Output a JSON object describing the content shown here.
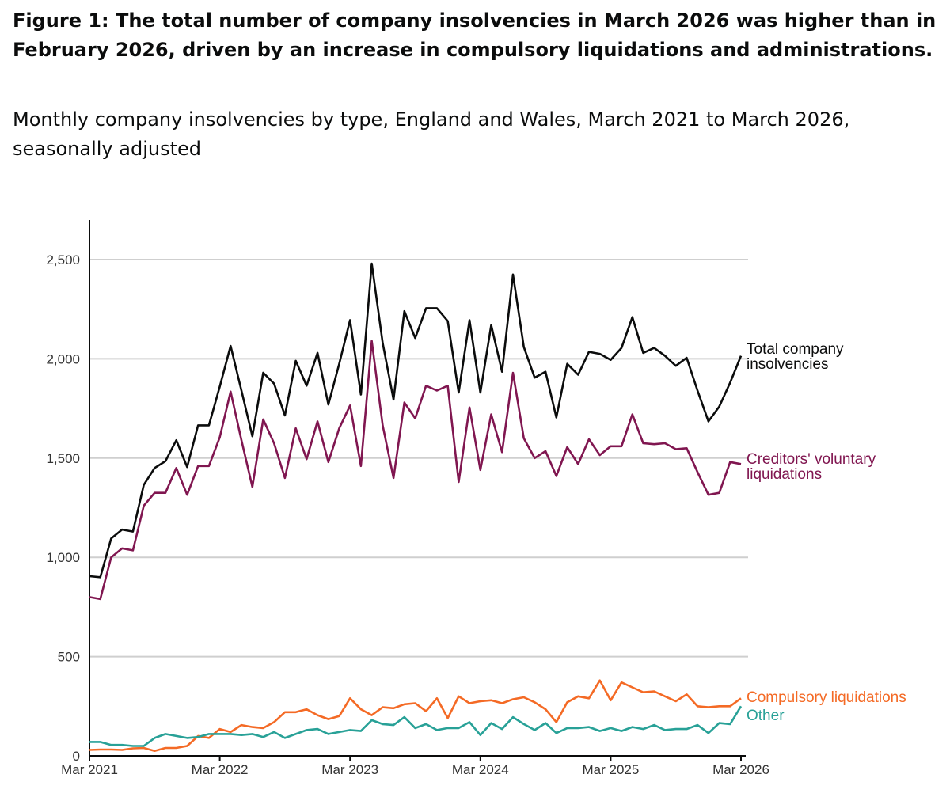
{
  "chart_data": {
    "type": "line",
    "title": "Figure 1: The total number of company insolvencies in March 2026 was higher than in February 2026, driven by an increase in compulsory liquidations and administrations.",
    "subtitle": "Monthly company insolvencies by type, England and Wales, March 2021 to March 2026, seasonally adjusted",
    "x_start": "Mar 2021",
    "x_end": "Mar 2026",
    "x_ticks": [
      "Mar 2021",
      "Mar 2022",
      "Mar 2023",
      "Mar 2024",
      "Mar 2025",
      "Mar 2026"
    ],
    "y_ticks": [
      "0",
      "500",
      "1,000",
      "1,500",
      "2,000",
      "2,500"
    ],
    "ylim": [
      0,
      2700
    ],
    "grid": true,
    "legend": "direct labels at line ends",
    "series": [
      {
        "name": "Total company insolvencies",
        "color": "#0b0c0c",
        "values": [
          905,
          900,
          1095,
          1140,
          1130,
          1365,
          1450,
          1485,
          1590,
          1455,
          1665,
          1665,
          1860,
          2065,
          1840,
          1610,
          1930,
          1875,
          1715,
          1990,
          1865,
          2030,
          1770,
          1975,
          2195,
          1820,
          2480,
          2080,
          1795,
          2240,
          2105,
          2255,
          2255,
          2190,
          1830,
          2195,
          1830,
          2170,
          1935,
          2425,
          2060,
          1905,
          1935,
          1705,
          1975,
          1920,
          2035,
          2025,
          1995,
          2055,
          2210,
          2030,
          2055,
          2015,
          1965,
          2005,
          1840,
          1685,
          1760,
          1880,
          2015
        ]
      },
      {
        "name": "Creditors' voluntary liquidations",
        "color": "#801650",
        "values": [
          800,
          790,
          1000,
          1045,
          1035,
          1260,
          1325,
          1325,
          1450,
          1315,
          1460,
          1460,
          1605,
          1835,
          1590,
          1355,
          1695,
          1575,
          1400,
          1650,
          1495,
          1685,
          1480,
          1650,
          1765,
          1460,
          2090,
          1665,
          1400,
          1780,
          1700,
          1865,
          1840,
          1865,
          1380,
          1755,
          1440,
          1720,
          1530,
          1930,
          1600,
          1500,
          1535,
          1410,
          1555,
          1470,
          1595,
          1515,
          1560,
          1560,
          1720,
          1575,
          1570,
          1575,
          1545,
          1550,
          1430,
          1315,
          1325,
          1480,
          1470
        ]
      },
      {
        "name": "Compulsory liquidations",
        "color": "#f46a25",
        "values": [
          30,
          32,
          32,
          30,
          38,
          40,
          25,
          40,
          40,
          50,
          100,
          90,
          135,
          120,
          155,
          145,
          140,
          170,
          220,
          220,
          235,
          205,
          185,
          200,
          290,
          235,
          205,
          245,
          240,
          260,
          265,
          225,
          290,
          190,
          300,
          265,
          275,
          280,
          265,
          285,
          295,
          270,
          235,
          170,
          270,
          300,
          290,
          380,
          280,
          370,
          345,
          320,
          325,
          300,
          275,
          310,
          250,
          245,
          250,
          250,
          290
        ]
      },
      {
        "name": "Other",
        "color": "#28a197",
        "values": [
          70,
          70,
          55,
          55,
          50,
          50,
          90,
          110,
          100,
          90,
          95,
          110,
          110,
          110,
          105,
          110,
          95,
          120,
          90,
          110,
          130,
          135,
          110,
          120,
          130,
          125,
          180,
          160,
          155,
          195,
          140,
          160,
          130,
          140,
          140,
          170,
          105,
          165,
          135,
          195,
          160,
          130,
          165,
          115,
          140,
          140,
          145,
          125,
          140,
          125,
          145,
          135,
          155,
          130,
          135,
          135,
          155,
          115,
          165,
          160,
          250
        ]
      }
    ],
    "labels": {
      "total": [
        "Total company",
        "insolvencies"
      ],
      "cvl": [
        "Creditors' voluntary",
        "liquidations"
      ],
      "compulsory": [
        "Compulsory liquidations"
      ],
      "other": [
        "Other"
      ]
    }
  }
}
